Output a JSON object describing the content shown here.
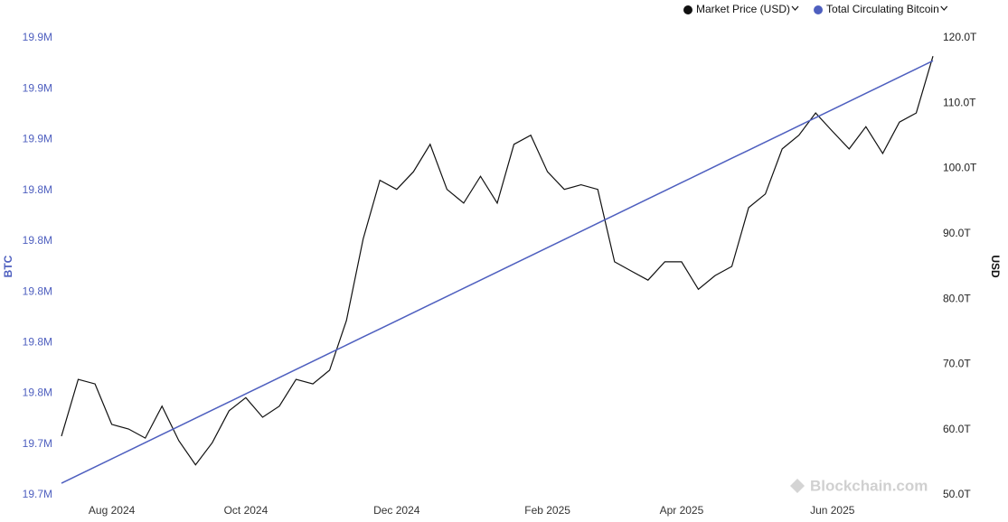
{
  "chart_data": {
    "type": "line",
    "legend": "top-right",
    "ylabel": "BTC",
    "y2label": "USD",
    "watermark": "Blockchain.com",
    "categories": [
      null,
      null,
      null,
      "Aug 2024",
      null,
      null,
      null,
      null,
      null,
      null,
      null,
      "Oct 2024",
      null,
      null,
      null,
      null,
      null,
      null,
      null,
      null,
      "Dec 2024",
      null,
      null,
      null,
      null,
      null,
      null,
      null,
      null,
      "Feb 2025",
      null,
      null,
      null,
      null,
      null,
      null,
      null,
      "Apr 2025",
      null,
      null,
      null,
      null,
      null,
      null,
      null,
      null,
      "Jun 2025",
      null,
      null,
      null,
      null,
      null,
      null
    ],
    "series": [
      {
        "name": "Market Price (USD)",
        "color": "#111111",
        "axis": "y2",
        "values": [
          59.0,
          67.7,
          67.0,
          60.8,
          60.1,
          58.7,
          63.6,
          58.3,
          54.6,
          58.0,
          62.9,
          64.9,
          61.9,
          63.6,
          67.7,
          67.0,
          69.1,
          76.7,
          89.2,
          98.2,
          96.8,
          99.5,
          103.7,
          96.8,
          94.7,
          98.8,
          94.7,
          103.7,
          105.1,
          99.5,
          96.8,
          97.5,
          96.8,
          85.7,
          84.3,
          82.9,
          85.7,
          85.7,
          81.5,
          83.6,
          85.0,
          94.0,
          96.1,
          103.0,
          105.1,
          108.5,
          105.7,
          103.0,
          106.4,
          102.3,
          107.1,
          108.5,
          117.2
        ]
      },
      {
        "name": "Total Circulating Bitcoin",
        "color": "#4e5fbf",
        "axis": "y",
        "values": [
          19714600,
          19717800,
          19721000,
          19724200,
          19727400,
          19730600,
          19733800,
          19737000,
          19740200,
          19743400,
          19746600,
          19749800,
          19753000,
          19756200,
          19759400,
          19762600,
          19765800,
          19769000,
          19772200,
          19775400,
          19778600,
          19781800,
          19785000,
          19788200,
          19791400,
          19794600,
          19797800,
          19801000,
          19804200,
          19807400,
          19810600,
          19813800,
          19817000,
          19820200,
          19823400,
          19826600,
          19829800,
          19833000,
          19836200,
          19839400,
          19842600,
          19845800,
          19849000,
          19852200,
          19855400,
          19858600,
          19861800,
          19865000,
          19868200,
          19871400,
          19874600,
          19877800,
          19881000
        ]
      }
    ],
    "ylim": [
      19710000,
      19890000
    ],
    "yticks": [
      {
        "value": 19710000,
        "label": "19.7M"
      },
      {
        "value": 19730000,
        "label": "19.7M"
      },
      {
        "value": 19750000,
        "label": "19.8M"
      },
      {
        "value": 19770000,
        "label": "19.8M"
      },
      {
        "value": 19790000,
        "label": "19.8M"
      },
      {
        "value": 19810000,
        "label": "19.8M"
      },
      {
        "value": 19830000,
        "label": "19.8M"
      },
      {
        "value": 19850000,
        "label": "19.9M"
      },
      {
        "value": 19870000,
        "label": "19.9M"
      },
      {
        "value": 19890000,
        "label": "19.9M"
      }
    ],
    "y2lim": [
      50,
      120
    ],
    "y2ticks": [
      {
        "value": 50,
        "label": "50.0T"
      },
      {
        "value": 60,
        "label": "60.0T"
      },
      {
        "value": 70,
        "label": "70.0T"
      },
      {
        "value": 80,
        "label": "80.0T"
      },
      {
        "value": 90,
        "label": "90.0T"
      },
      {
        "value": 100,
        "label": "100.0T"
      },
      {
        "value": 110,
        "label": "110.0T"
      },
      {
        "value": 120,
        "label": "120.0T"
      }
    ],
    "grid": false
  }
}
